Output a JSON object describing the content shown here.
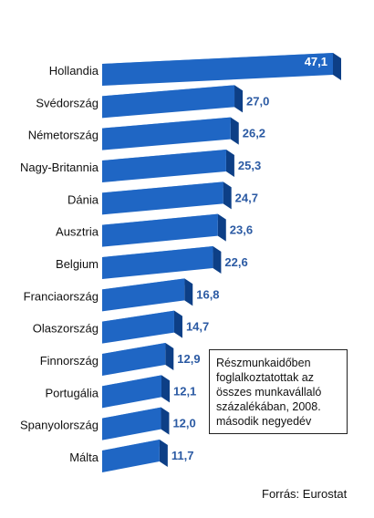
{
  "chart_data": {
    "type": "bar",
    "orientation": "horizontal",
    "categories": [
      "Hollandia",
      "Svédország",
      "Németország",
      "Nagy-Britannia",
      "Dánia",
      "Ausztria",
      "Belgium",
      "Franciaország",
      "Olaszország",
      "Finnország",
      "Portugália",
      "Spanyolország",
      "Málta"
    ],
    "values": [
      47.1,
      27.0,
      26.2,
      25.3,
      24.7,
      23.6,
      22.6,
      16.8,
      14.7,
      12.9,
      12.1,
      12.0,
      11.7
    ],
    "value_labels": [
      "47,1",
      "27,0",
      "26,2",
      "25,3",
      "24,7",
      "23,6",
      "22,6",
      "16,8",
      "14,7",
      "12,9",
      "12,1",
      "12,0",
      "11,7"
    ],
    "title": "",
    "xlabel": "",
    "ylabel": "",
    "note": "Részmunkaidőben foglalkoztatottak az összes munkavállaló százalékában, 2008. második negyedév",
    "source": "Forrás: Eurostat",
    "colors": {
      "bar_front": "#1f66c4",
      "bar_top": "#5aa0ea",
      "bar_side": "#0d3f86",
      "value_text": "#2b5aa3"
    }
  }
}
